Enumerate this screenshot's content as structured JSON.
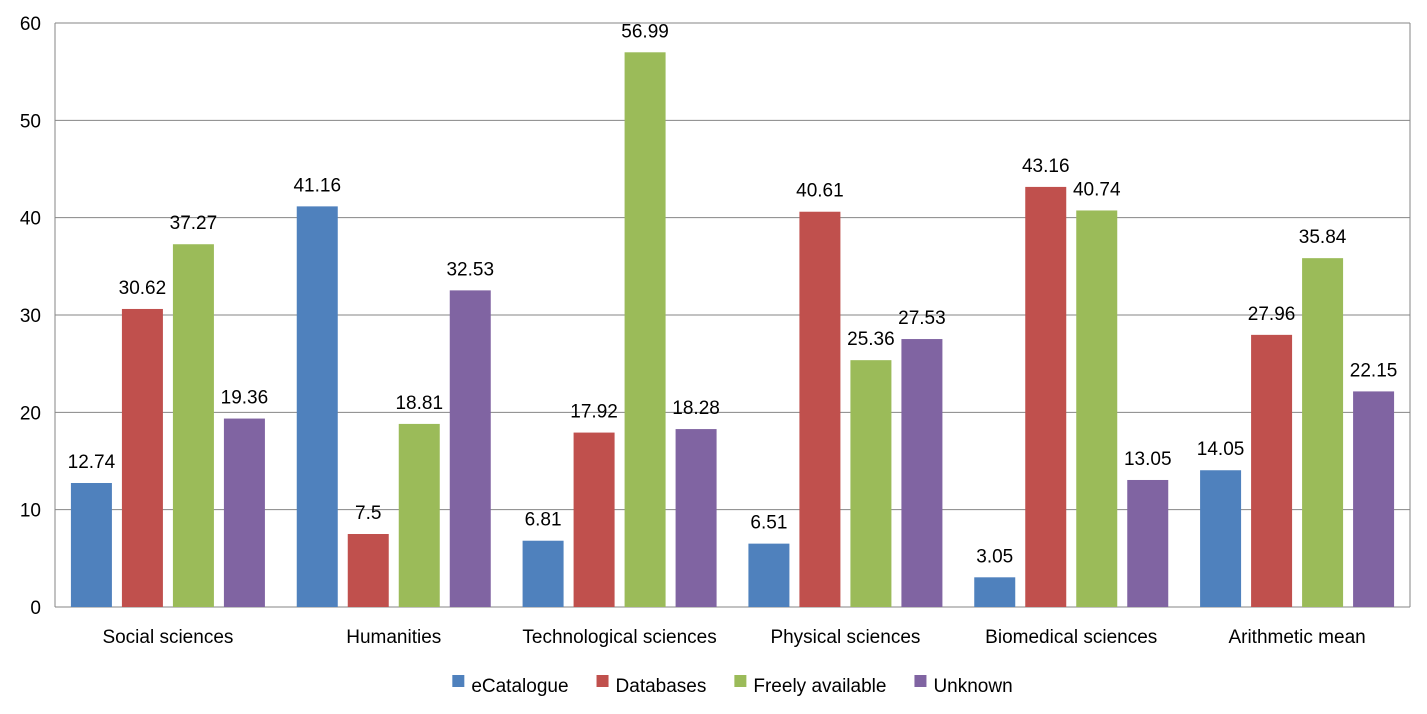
{
  "chart_data": {
    "type": "bar",
    "title": "",
    "xlabel": "",
    "ylabel": "",
    "ylim": [
      0,
      60
    ],
    "yticks": [
      0,
      10,
      20,
      30,
      40,
      50,
      60
    ],
    "grid": true,
    "legend_position": "bottom",
    "categories": [
      "Social sciences",
      "Humanities",
      "Technological sciences",
      "Physical sciences",
      "Biomedical sciences",
      "Arithmetic mean"
    ],
    "series": [
      {
        "name": "eCatalogue",
        "color": "#4F81BD",
        "values": [
          12.74,
          41.16,
          6.81,
          6.51,
          3.05,
          14.05
        ]
      },
      {
        "name": "Databases",
        "color": "#C0504D",
        "values": [
          30.62,
          7.5,
          17.92,
          40.61,
          43.16,
          27.96
        ]
      },
      {
        "name": "Freely available",
        "color": "#9BBB59",
        "values": [
          37.27,
          18.81,
          56.99,
          25.36,
          40.74,
          35.84
        ]
      },
      {
        "name": "Unknown",
        "color": "#8064A2",
        "values": [
          19.36,
          32.53,
          18.28,
          27.53,
          13.05,
          22.15
        ]
      }
    ]
  }
}
